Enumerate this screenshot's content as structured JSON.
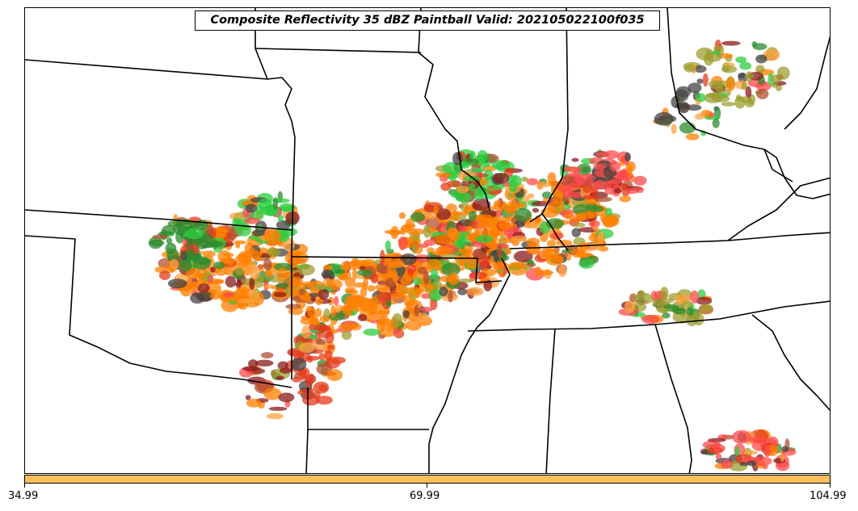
{
  "title": "Composite Reflectivity 35 dBZ Paintball Valid: 202105022100f035",
  "colorbar": {
    "color": "#ffbe5a",
    "min_label": "34.99",
    "mid_label": "69.99",
    "max_label": "104.99"
  },
  "map": {
    "boundary_color": "#000000",
    "paint_colors": [
      "#ff7f00",
      "#e53b1b",
      "#ff4a4a",
      "#2ecc40",
      "#2e8b2e",
      "#9e9e30",
      "#8b1a1a",
      "#444444",
      "#ffa040",
      "#b05030"
    ]
  }
}
